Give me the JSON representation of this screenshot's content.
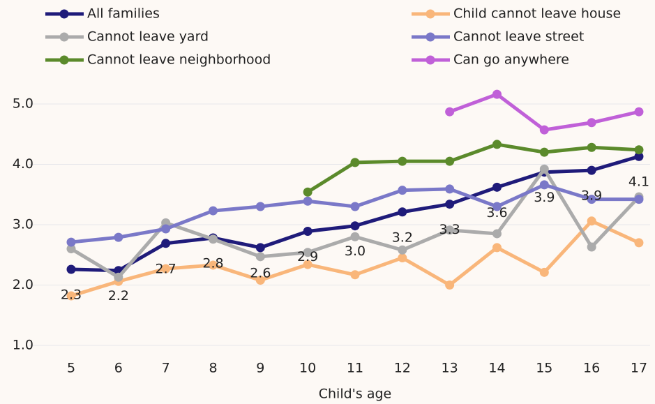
{
  "chart_data": {
    "type": "line",
    "xlabel": "Child's age",
    "categories": [
      "5",
      "6",
      "7",
      "8",
      "9",
      "10",
      "11",
      "12",
      "13",
      "14",
      "15",
      "16",
      "17"
    ],
    "ylim": [
      1,
      5.3
    ],
    "yticks": [
      {
        "value": 1,
        "label": "1.0"
      },
      {
        "value": 2,
        "label": "2.0"
      },
      {
        "value": 3,
        "label": "3.0"
      },
      {
        "value": 4,
        "label": "4.0"
      },
      {
        "value": 5,
        "label": "5.0"
      }
    ],
    "grid": true,
    "series": [
      {
        "name": "All families",
        "color": "#1f1b7a",
        "values": [
          2.26,
          2.24,
          2.69,
          2.78,
          2.62,
          2.89,
          2.98,
          3.21,
          3.34,
          3.62,
          3.87,
          3.9,
          4.13
        ],
        "value_labels": [
          "2.3",
          "2.2",
          "2.7",
          "2.8",
          "2.6",
          "2.9",
          "3.0",
          "3.2",
          "3.3",
          "3.6",
          "3.9",
          "3.9",
          "4.1"
        ]
      },
      {
        "name": "Child cannot leave house",
        "color": "#f9b67a",
        "values": [
          1.82,
          2.06,
          2.27,
          2.33,
          2.08,
          2.34,
          2.17,
          2.45,
          2.0,
          2.62,
          2.21,
          3.06,
          2.7
        ]
      },
      {
        "name": "Cannot leave yard",
        "color": "#ababab",
        "values": [
          2.6,
          2.13,
          3.03,
          2.76,
          2.47,
          2.54,
          2.8,
          2.58,
          2.91,
          2.85,
          3.92,
          2.63,
          3.46
        ]
      },
      {
        "name": "Cannot leave street",
        "color": "#7a78c8",
        "values": [
          2.71,
          2.79,
          2.93,
          3.23,
          3.3,
          3.39,
          3.3,
          3.57,
          3.59,
          3.3,
          3.66,
          3.42,
          3.42
        ]
      },
      {
        "name": "Cannot leave neighborhood",
        "color": "#5b8a2b",
        "values": [
          null,
          null,
          null,
          null,
          null,
          3.54,
          4.03,
          4.05,
          4.05,
          4.33,
          4.2,
          4.28,
          4.24
        ]
      },
      {
        "name": "Can go anywhere",
        "color": "#c060d8",
        "values": [
          null,
          null,
          null,
          null,
          null,
          null,
          null,
          null,
          4.87,
          5.16,
          4.57,
          4.69,
          4.87
        ]
      }
    ]
  }
}
